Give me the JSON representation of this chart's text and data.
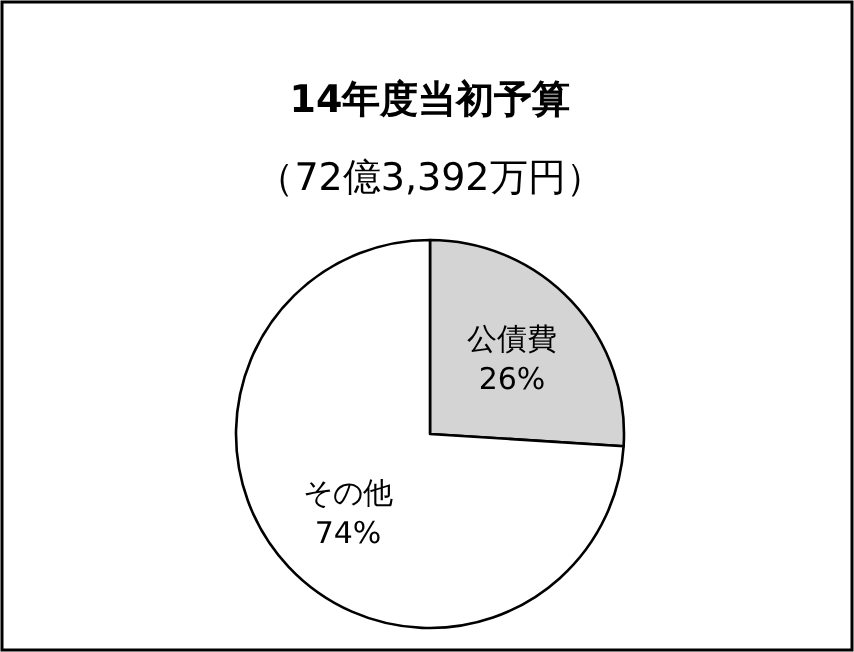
{
  "chart_data": {
    "type": "pie",
    "title": "14年度当初予算",
    "subtitle": "（72億3,392万円）",
    "categories": [
      "公債費",
      "その他"
    ],
    "values": [
      26,
      74
    ],
    "colors": [
      "#d4d4d4",
      "#ffffff"
    ],
    "value_labels": [
      "26%",
      "74%"
    ]
  }
}
